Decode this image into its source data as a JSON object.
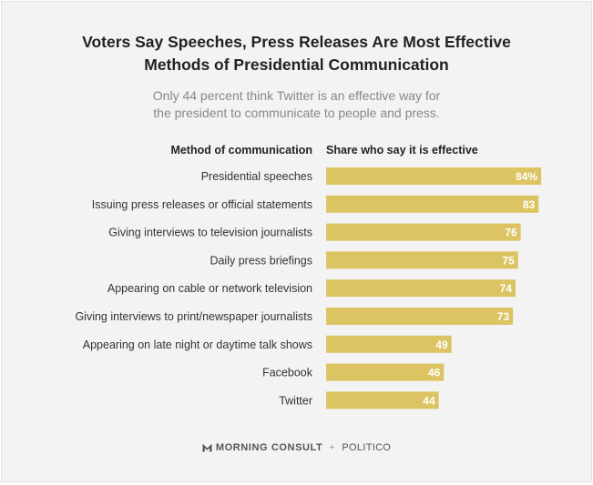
{
  "title_line1": "Voters Say Speeches, Press Releases Are Most Effective",
  "title_line2": "Methods of Presidential Communication",
  "subtitle_line1": "Only 44 percent think Twitter is an effective way for",
  "subtitle_line2": "the president to communicate to people and press.",
  "chart_data": {
    "type": "bar",
    "orientation": "horizontal",
    "category_header": "Method of communication",
    "value_header": "Share who say it is effective",
    "categories": [
      "Presidential speeches",
      "Issuing press releases or official statements",
      "Giving interviews to television journalists",
      "Daily press briefings",
      "Appearing on cable or network television",
      "Giving interviews to print/newspaper journalists",
      "Appearing on late night or daytime talk shows",
      "Facebook",
      "Twitter"
    ],
    "values": [
      84,
      83,
      76,
      75,
      74,
      73,
      49,
      46,
      44
    ],
    "value_labels": [
      "84%",
      "83",
      "76",
      "75",
      "74",
      "73",
      "49",
      "46",
      "44"
    ],
    "xlim": [
      0,
      100
    ],
    "bar_color": "#dcc462",
    "grid": false
  },
  "footer": {
    "source1": "MORNING CONSULT",
    "separator": "+",
    "source2": "POLITICO"
  }
}
